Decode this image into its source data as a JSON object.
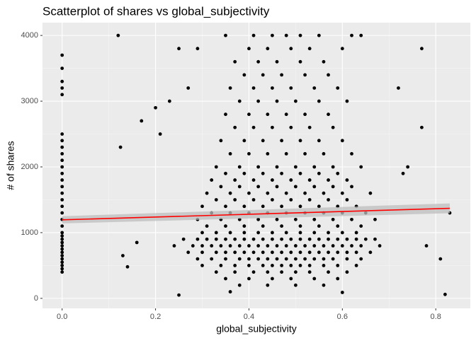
{
  "chart_data": {
    "type": "scatter",
    "title": "Scatterplot of shares vs global_subjectivity",
    "x_label": "global_subjectivity",
    "y_label": "# of shares",
    "xlim": [
      -0.042,
      0.874
    ],
    "ylim": [
      -152,
      4195
    ],
    "xticks": [
      {
        "value": 0,
        "label": "0.0"
      },
      0.2,
      0.4,
      0.6,
      0.8
    ],
    "yticks": [
      0,
      1000,
      2000,
      3000,
      4000
    ],
    "grid": true,
    "color": "#000000",
    "x": [
      0,
      0,
      0,
      0,
      0,
      0,
      0,
      0,
      0,
      0,
      0,
      0,
      0,
      0,
      0,
      0,
      0,
      0,
      0,
      0,
      0,
      0,
      0,
      0,
      0,
      0,
      0,
      0,
      0,
      0,
      0,
      0,
      0,
      0.26,
      0.29,
      0.31,
      0.33,
      0.35,
      0.37,
      0.39,
      0.41,
      0.43,
      0.45,
      0.47,
      0.49,
      0.51,
      0.53,
      0.55,
      0.57,
      0.59,
      0.61,
      0.63,
      0.65,
      0.67,
      0.24,
      0.28,
      0.3,
      0.32,
      0.34,
      0.36,
      0.38,
      0.4,
      0.42,
      0.44,
      0.46,
      0.48,
      0.5,
      0.52,
      0.54,
      0.56,
      0.58,
      0.6,
      0.62,
      0.64,
      0.68,
      0.27,
      0.3,
      0.33,
      0.35,
      0.37,
      0.39,
      0.41,
      0.43,
      0.45,
      0.47,
      0.49,
      0.51,
      0.53,
      0.55,
      0.57,
      0.59,
      0.61,
      0.63,
      0.66,
      0.29,
      0.32,
      0.35,
      0.38,
      0.4,
      0.42,
      0.44,
      0.46,
      0.48,
      0.5,
      0.52,
      0.54,
      0.56,
      0.58,
      0.61,
      0.64,
      0.3,
      0.34,
      0.37,
      0.4,
      0.43,
      0.45,
      0.47,
      0.49,
      0.51,
      0.53,
      0.56,
      0.59,
      0.63,
      0.33,
      0.37,
      0.41,
      0.44,
      0.47,
      0.5,
      0.53,
      0.57,
      0.61,
      0.35,
      0.4,
      0.45,
      0.49,
      0.54,
      0.59,
      0.38,
      0.44,
      0.5,
      0.56,
      0.3,
      0.33,
      0.36,
      0.39,
      0.42,
      0.45,
      0.48,
      0.51,
      0.54,
      0.57,
      0.6,
      0.63,
      0.31,
      0.35,
      0.39,
      0.43,
      0.47,
      0.51,
      0.55,
      0.59,
      0.64,
      0.29,
      0.34,
      0.38,
      0.42,
      0.46,
      0.5,
      0.54,
      0.58,
      0.62,
      0.67,
      0.32,
      0.36,
      0.4,
      0.44,
      0.48,
      0.52,
      0.56,
      0.6,
      0.65,
      0.3,
      0.35,
      0.39,
      0.43,
      0.47,
      0.51,
      0.55,
      0.59,
      0.63,
      0.33,
      0.37,
      0.41,
      0.45,
      0.49,
      0.53,
      0.57,
      0.61,
      0.31,
      0.36,
      0.4,
      0.44,
      0.48,
      0.52,
      0.56,
      0.6,
      0.66,
      0.34,
      0.38,
      0.42,
      0.46,
      0.5,
      0.54,
      0.58,
      0.62,
      0.32,
      0.37,
      0.41,
      0.45,
      0.49,
      0.53,
      0.57,
      0.61,
      0.35,
      0.39,
      0.43,
      0.47,
      0.51,
      0.55,
      0.59,
      0.33,
      0.38,
      0.42,
      0.46,
      0.5,
      0.54,
      0.58,
      0.64,
      0.36,
      0.4,
      0.44,
      0.48,
      0.52,
      0.56,
      0.62,
      0.34,
      0.39,
      0.43,
      0.47,
      0.51,
      0.55,
      0.6,
      0.37,
      0.41,
      0.45,
      0.49,
      0.53,
      0.58,
      0.35,
      0.4,
      0.44,
      0.48,
      0.52,
      0.57,
      0.38,
      0.42,
      0.46,
      0.5,
      0.55,
      0.61,
      0.36,
      0.41,
      0.45,
      0.49,
      0.54,
      0.59,
      0.39,
      0.43,
      0.47,
      0.52,
      0.57,
      0.37,
      0.42,
      0.46,
      0.51,
      0.56,
      0.4,
      0.44,
      0.49,
      0.53,
      0.6,
      0.35,
      0.41,
      0.45,
      0.48,
      0.51,
      0.55,
      0.62,
      0.64,
      0.12,
      0.125,
      0.2,
      0.21,
      0.17,
      0.23,
      0.25,
      0.27,
      0.29,
      0.72,
      0.77,
      0.77,
      0.73,
      0.74,
      0.83,
      0.81,
      0.82,
      0.78,
      0.25,
      0.13,
      0.14,
      0.16,
      0.6,
      0.36
    ],
    "values": [
      400,
      450,
      500,
      550,
      600,
      650,
      700,
      750,
      800,
      850,
      900,
      950,
      1000,
      1100,
      1200,
      1300,
      1400,
      1500,
      1600,
      1700,
      1800,
      1900,
      2000,
      2100,
      2200,
      2300,
      2400,
      2500,
      3100,
      3200,
      3300,
      3500,
      3700,
      900,
      900,
      900,
      900,
      900,
      900,
      900,
      900,
      900,
      900,
      900,
      900,
      900,
      900,
      900,
      900,
      900,
      900,
      900,
      900,
      900,
      800,
      800,
      800,
      800,
      800,
      800,
      800,
      800,
      800,
      800,
      800,
      800,
      800,
      800,
      800,
      800,
      800,
      800,
      800,
      800,
      800,
      700,
      700,
      700,
      700,
      700,
      700,
      700,
      700,
      700,
      700,
      700,
      700,
      700,
      700,
      700,
      700,
      700,
      700,
      700,
      600,
      600,
      600,
      600,
      600,
      600,
      600,
      600,
      600,
      600,
      600,
      600,
      600,
      600,
      600,
      600,
      500,
      500,
      500,
      500,
      500,
      500,
      500,
      500,
      500,
      500,
      500,
      500,
      500,
      400,
      400,
      400,
      400,
      400,
      400,
      400,
      400,
      400,
      300,
      300,
      300,
      300,
      300,
      300,
      200,
      200,
      200,
      200,
      1000,
      1000,
      1000,
      1000,
      1000,
      1000,
      1000,
      1000,
      1000,
      1000,
      1000,
      1000,
      1100,
      1100,
      1100,
      1100,
      1100,
      1100,
      1100,
      1100,
      1100,
      1200,
      1200,
      1200,
      1200,
      1200,
      1200,
      1200,
      1200,
      1200,
      1200,
      1300,
      1300,
      1300,
      1300,
      1300,
      1300,
      1300,
      1300,
      1300,
      1400,
      1400,
      1400,
      1400,
      1400,
      1400,
      1400,
      1400,
      1400,
      1500,
      1500,
      1500,
      1500,
      1500,
      1500,
      1500,
      1500,
      1600,
      1600,
      1600,
      1600,
      1600,
      1600,
      1600,
      1600,
      1600,
      1700,
      1700,
      1700,
      1700,
      1700,
      1700,
      1700,
      1700,
      1800,
      1800,
      1800,
      1800,
      1800,
      1800,
      1800,
      1800,
      1900,
      1900,
      1900,
      1900,
      1900,
      1900,
      1900,
      2000,
      2000,
      2000,
      2000,
      2000,
      2000,
      2000,
      2000,
      2200,
      2200,
      2200,
      2200,
      2200,
      2200,
      2200,
      2400,
      2400,
      2400,
      2400,
      2400,
      2400,
      2400,
      2600,
      2600,
      2600,
      2600,
      2600,
      2600,
      2800,
      2800,
      2800,
      2800,
      2800,
      2800,
      3000,
      3000,
      3000,
      3000,
      3000,
      3000,
      3200,
      3200,
      3200,
      3200,
      3200,
      3200,
      3400,
      3400,
      3400,
      3400,
      3400,
      3600,
      3600,
      3600,
      3600,
      3600,
      3800,
      3800,
      3800,
      3800,
      3800,
      4000,
      4000,
      4000,
      4000,
      4000,
      4000,
      4000,
      4000,
      4000,
      2300,
      2900,
      2500,
      2700,
      3000,
      3800,
      3200,
      3800,
      3200,
      3800,
      2600,
      1900,
      2000,
      1300,
      600,
      60,
      800,
      50,
      650,
      480,
      850,
      90,
      100
    ],
    "trend": {
      "color": "#ff0000",
      "band_color": "#bdbdbd",
      "x": [
        0,
        0.83
      ],
      "values": [
        1195,
        1370
      ],
      "lower": [
        1140,
        1295
      ],
      "upper": [
        1250,
        1445
      ]
    }
  }
}
